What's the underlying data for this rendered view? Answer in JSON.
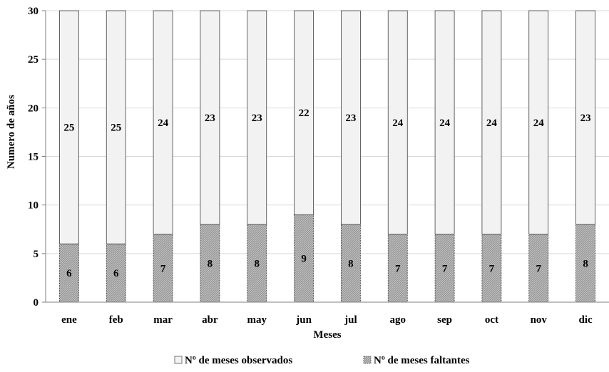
{
  "chart_data": {
    "type": "bar",
    "stacked": true,
    "categories": [
      "ene",
      "feb",
      "mar",
      "abr",
      "may",
      "jun",
      "jul",
      "ago",
      "sep",
      "oct",
      "nov",
      "dic"
    ],
    "series": [
      {
        "name": "Nº de meses faltantes",
        "values": [
          6,
          6,
          7,
          8,
          8,
          9,
          8,
          7,
          7,
          7,
          7,
          8
        ],
        "color": "#a6a6a6"
      },
      {
        "name": "Nº de meses observados",
        "values": [
          25,
          25,
          24,
          23,
          23,
          22,
          23,
          24,
          24,
          24,
          24,
          23
        ],
        "color": "#f2f2f2"
      }
    ],
    "xlabel": "Meses",
    "ylabel": "Numero de años",
    "ylim": [
      0,
      30
    ],
    "yticks": [
      0,
      5,
      10,
      15,
      20,
      25,
      30
    ],
    "grid": true,
    "legend": "bottom"
  }
}
